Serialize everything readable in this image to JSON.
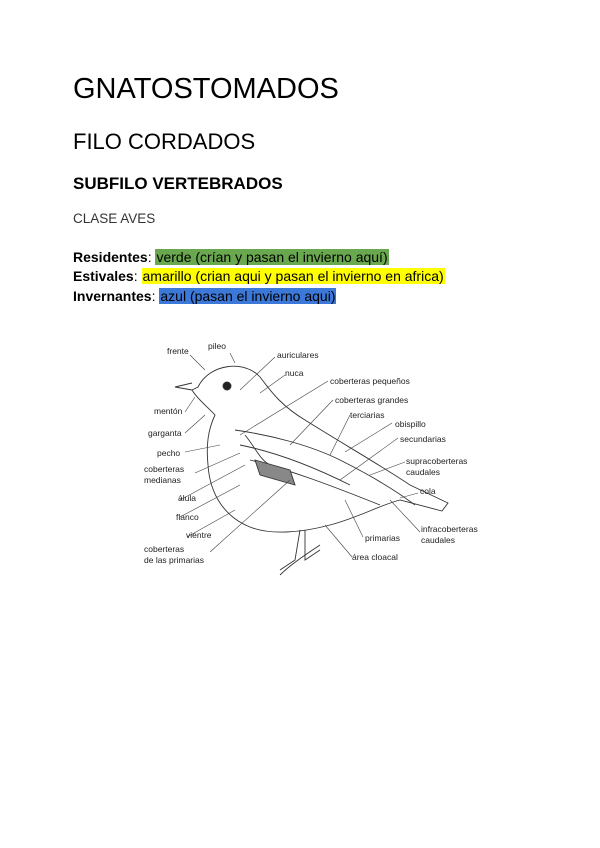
{
  "title": "GNATOSTOMADOS",
  "phylum": "FILO CORDADOS",
  "subphylum": "SUBFILO VERTEBRADOS",
  "class": "CLASE AVES",
  "legend": [
    {
      "key": "Residentes",
      "sep": ": ",
      "value": "verde (crían y pasan el invierno aquí)",
      "color": "#6aa84f"
    },
    {
      "key": "Estivales",
      "sep": ": ",
      "value": "amarillo (crian aqui y pasan el invierno en africa)",
      "color": "#ffff00"
    },
    {
      "key": "Invernantes",
      "sep": ": ",
      "value": "azul (pasan el invierno aqui)",
      "color": "#3c78d8"
    }
  ],
  "diagram_labels": {
    "frente": "frente",
    "pileo": "pileo",
    "auriculares": "auriculares",
    "nuca": "nuca",
    "cob_peq": "coberteras pequeños",
    "cob_gr": "coberteras grandes",
    "terciarias": "terciarias",
    "obispillo": "obispillo",
    "secundarias": "secundarias",
    "supra1": "supracoberteras",
    "supra2": "caudales",
    "cola": "cola",
    "infra1": "infracoberteras",
    "infra2": "caudales",
    "primarias": "primarias",
    "cloacal": "área cloacal",
    "cobprim1": "coberteras",
    "cobprim2": "de las primarias",
    "vientre": "vientre",
    "flanco": "flanco",
    "alula": "álula",
    "cobmed1": "coberteras",
    "cobmed2": "medianas",
    "pecho": "pecho",
    "garganta": "garganta",
    "menton": "mentón"
  }
}
